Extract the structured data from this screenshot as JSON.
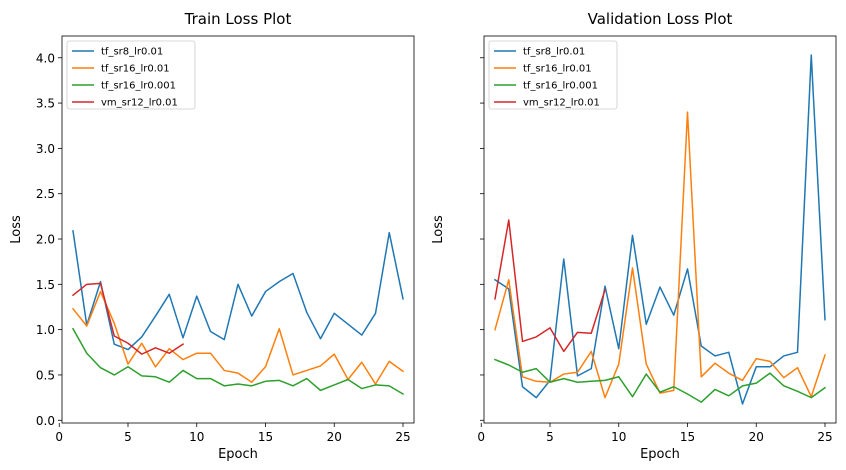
{
  "chart_data": [
    {
      "type": "line",
      "title": "Train Loss Plot",
      "xlabel": "Epoch",
      "ylabel": "Loss",
      "xlim": [
        0.2,
        25.8
      ],
      "ylim": [
        -0.03,
        4.24
      ],
      "xticks": [
        0,
        5,
        10,
        15,
        20,
        25
      ],
      "yticks": [
        0.0,
        0.5,
        1.0,
        1.5,
        2.0,
        2.5,
        3.0,
        3.5,
        4.0
      ],
      "xtick_labels": [
        "0",
        "5",
        "10",
        "15",
        "20",
        "25"
      ],
      "ytick_labels": [
        "0.0",
        "0.5",
        "1.0",
        "1.5",
        "2.0",
        "2.5",
        "3.0",
        "3.5",
        "4.0"
      ],
      "legend": "upper left",
      "series": [
        {
          "name": "tf_sr8_lr0.01",
          "color": "#1f77b4",
          "x": [
            1,
            2,
            3,
            4,
            5,
            6,
            7,
            8,
            9,
            10,
            11,
            12,
            13,
            14,
            15,
            16,
            17,
            18,
            19,
            20,
            21,
            22,
            23,
            24,
            25
          ],
          "y": [
            2.09,
            1.05,
            1.53,
            0.84,
            0.78,
            0.92,
            1.15,
            1.39,
            0.91,
            1.37,
            0.98,
            0.89,
            1.5,
            1.15,
            1.42,
            1.53,
            1.62,
            1.19,
            0.9,
            1.18,
            1.06,
            0.94,
            1.18,
            2.07,
            1.34
          ]
        },
        {
          "name": "tf_sr16_lr0.01",
          "color": "#ff7f0e",
          "x": [
            1,
            2,
            3,
            4,
            5,
            6,
            7,
            8,
            9,
            10,
            11,
            12,
            13,
            14,
            15,
            16,
            17,
            18,
            19,
            20,
            21,
            22,
            23,
            24,
            25
          ],
          "y": [
            1.23,
            1.04,
            1.42,
            1.07,
            0.62,
            0.85,
            0.59,
            0.79,
            0.67,
            0.74,
            0.74,
            0.55,
            0.52,
            0.42,
            0.59,
            1.01,
            0.5,
            0.55,
            0.6,
            0.73,
            0.45,
            0.64,
            0.4,
            0.65,
            0.54
          ]
        },
        {
          "name": "tf_sr16_lr0.001",
          "color": "#2ca02c",
          "x": [
            1,
            2,
            3,
            4,
            5,
            6,
            7,
            8,
            9,
            10,
            11,
            12,
            13,
            14,
            15,
            16,
            17,
            18,
            19,
            20,
            21,
            22,
            23,
            24,
            25
          ],
          "y": [
            1.01,
            0.74,
            0.58,
            0.5,
            0.59,
            0.49,
            0.48,
            0.42,
            0.55,
            0.46,
            0.46,
            0.38,
            0.4,
            0.38,
            0.43,
            0.44,
            0.38,
            0.46,
            0.33,
            0.39,
            0.45,
            0.35,
            0.39,
            0.38,
            0.29
          ]
        },
        {
          "name": "vm_sr12_lr0.01",
          "color": "#d62728",
          "x": [
            1,
            2,
            3,
            4,
            5,
            6,
            7,
            8,
            9
          ],
          "y": [
            1.38,
            1.5,
            1.51,
            0.93,
            0.85,
            0.73,
            0.8,
            0.74,
            0.84
          ]
        }
      ]
    },
    {
      "type": "line",
      "title": "Validation Loss Plot",
      "xlabel": "Epoch",
      "ylabel": "Loss",
      "xlim": [
        0.2,
        25.8
      ],
      "ylim": [
        -0.03,
        4.24
      ],
      "xticks": [
        0,
        5,
        10,
        15,
        20,
        25
      ],
      "yticks": [
        0.0,
        0.5,
        1.0,
        1.5,
        2.0,
        2.5,
        3.0,
        3.5,
        4.0
      ],
      "xtick_labels": [
        "0",
        "5",
        "10",
        "15",
        "20",
        "25"
      ],
      "ytick_labels": [],
      "legend": "upper left",
      "series": [
        {
          "name": "tf_sr8_lr0.01",
          "color": "#1f77b4",
          "x": [
            1,
            2,
            3,
            4,
            5,
            6,
            7,
            8,
            9,
            10,
            11,
            12,
            13,
            14,
            15,
            16,
            17,
            18,
            19,
            20,
            21,
            22,
            23,
            24,
            25
          ],
          "y": [
            1.55,
            1.45,
            0.37,
            0.25,
            0.44,
            1.78,
            0.49,
            0.57,
            1.48,
            0.79,
            2.04,
            1.06,
            1.47,
            1.16,
            1.67,
            0.82,
            0.71,
            0.75,
            0.18,
            0.59,
            0.59,
            0.71,
            0.75,
            4.03,
            1.11
          ]
        },
        {
          "name": "tf_sr16_lr0.01",
          "color": "#ff7f0e",
          "x": [
            1,
            2,
            3,
            4,
            5,
            6,
            7,
            8,
            9,
            10,
            11,
            12,
            13,
            14,
            15,
            16,
            17,
            18,
            19,
            20,
            21,
            22,
            23,
            24,
            25
          ],
          "y": [
            1.0,
            1.55,
            0.48,
            0.43,
            0.42,
            0.51,
            0.53,
            0.76,
            0.25,
            0.62,
            1.68,
            0.62,
            0.3,
            0.33,
            3.4,
            0.48,
            0.63,
            0.52,
            0.44,
            0.68,
            0.65,
            0.47,
            0.58,
            0.26,
            0.72
          ]
        },
        {
          "name": "tf_sr16_lr0.001",
          "color": "#2ca02c",
          "x": [
            1,
            2,
            3,
            4,
            5,
            6,
            7,
            8,
            9,
            10,
            11,
            12,
            13,
            14,
            15,
            16,
            17,
            18,
            19,
            20,
            21,
            22,
            23,
            24,
            25
          ],
          "y": [
            0.67,
            0.61,
            0.53,
            0.57,
            0.42,
            0.46,
            0.42,
            0.43,
            0.44,
            0.48,
            0.26,
            0.51,
            0.31,
            0.37,
            0.29,
            0.2,
            0.34,
            0.27,
            0.38,
            0.41,
            0.52,
            0.38,
            0.32,
            0.25,
            0.36
          ]
        },
        {
          "name": "vm_sr12_lr0.01",
          "color": "#d62728",
          "x": [
            1,
            2,
            3,
            4,
            5,
            6,
            7,
            8,
            9
          ],
          "y": [
            1.34,
            2.21,
            0.87,
            0.92,
            1.02,
            0.76,
            0.97,
            0.96,
            1.44
          ]
        }
      ]
    }
  ]
}
